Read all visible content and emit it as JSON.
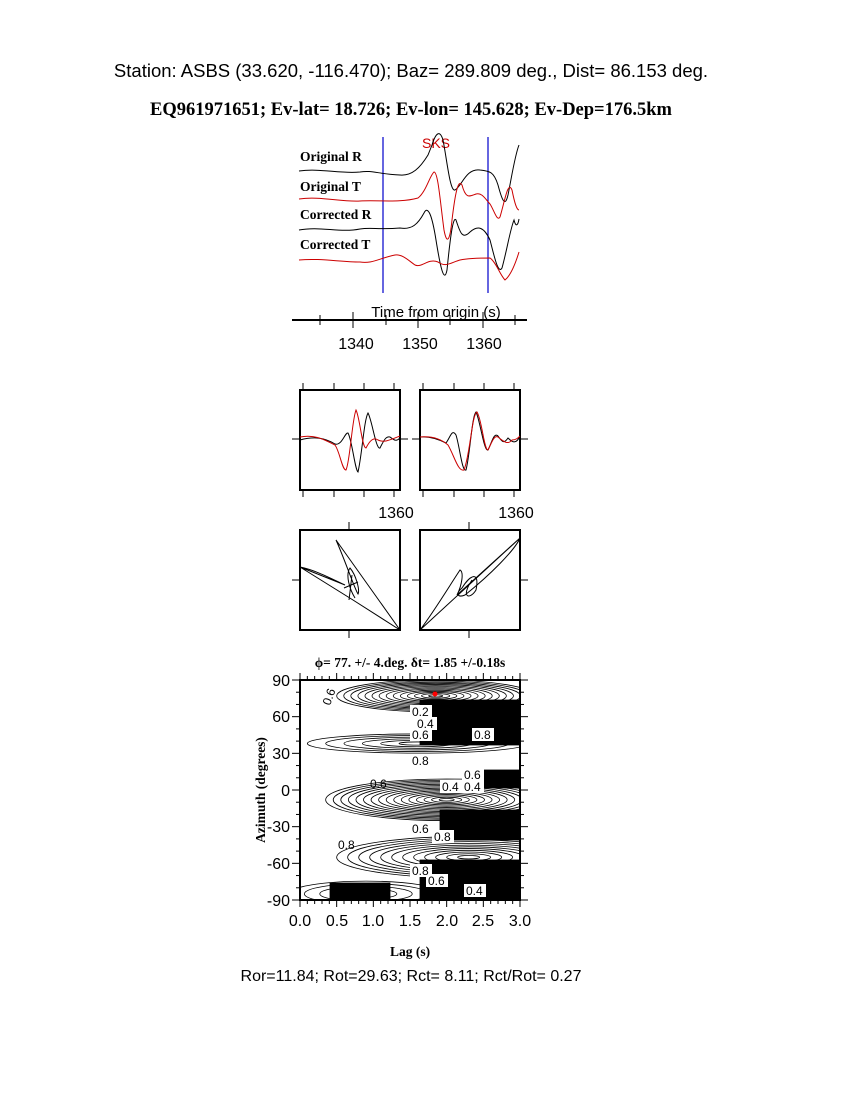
{
  "header": {
    "station_line": "Station: ASBS (33.620, -116.470); Baz=  289.809 deg., Dist=   86.153 deg.",
    "event_line": "EQ961971651; Ev-lat=  18.726; Ev-lon= 145.628; Ev-Dep=176.5km"
  },
  "colors": {
    "trace_black": "#000000",
    "trace_red": "#cc0000",
    "window_lines": "#0000cc",
    "best_fit_marker": "#ff0000"
  },
  "chart_data": [
    {
      "type": "line",
      "phase_label": "SKS",
      "series": [
        {
          "name": "Original R",
          "color": "#000000"
        },
        {
          "name": "Original T",
          "color": "#cc0000"
        },
        {
          "name": "Corrected R",
          "color": "#000000"
        },
        {
          "name": "Corrected T",
          "color": "#cc0000"
        }
      ],
      "xlabel": "Time from origin (s)",
      "xticks": [
        "1340",
        "1350",
        "1360"
      ],
      "xlim": [
        1331,
        1366
      ],
      "window": [
        1344,
        1361
      ]
    },
    {
      "type": "line",
      "xticks": [
        "1360"
      ],
      "series_colors": [
        "#000000",
        "#cc0000"
      ]
    },
    {
      "type": "line",
      "xticks": [
        "1360"
      ],
      "series_colors": [
        "#000000",
        "#cc0000"
      ]
    },
    {
      "type": "scatter",
      "description_kind": "particle-motion"
    },
    {
      "type": "scatter",
      "description_kind": "particle-motion"
    },
    {
      "type": "heatmap",
      "title": "ϕ= 77. +/- 4.deg. δt= 1.85 +/-0.18s",
      "xlabel": "Lag (s)",
      "ylabel": "Azimuth (degrees)",
      "xticks": [
        "0.0",
        "0.5",
        "1.0",
        "1.5",
        "2.0",
        "2.5",
        "3.0"
      ],
      "yticks": [
        "90",
        "60",
        "30",
        "0",
        "-30",
        "-60",
        "-90"
      ],
      "xlim": [
        0,
        3.0
      ],
      "ylim": [
        -90,
        90
      ],
      "best_fit": {
        "lag": 1.85,
        "azimuth": 77
      },
      "contour_labels": [
        "0.6",
        "0.2",
        "0.4",
        "0.6",
        "0.8",
        "0.8",
        "0.6",
        "0.6",
        "0.4",
        "0.4",
        "0.4",
        "0.6",
        "0.8",
        "0.8",
        "0.8",
        "0.6",
        "0.4"
      ]
    }
  ],
  "footer": {
    "ratios": "Ror=11.84; Rot=29.63; Rct= 8.11; Rct/Rot= 0.27"
  }
}
